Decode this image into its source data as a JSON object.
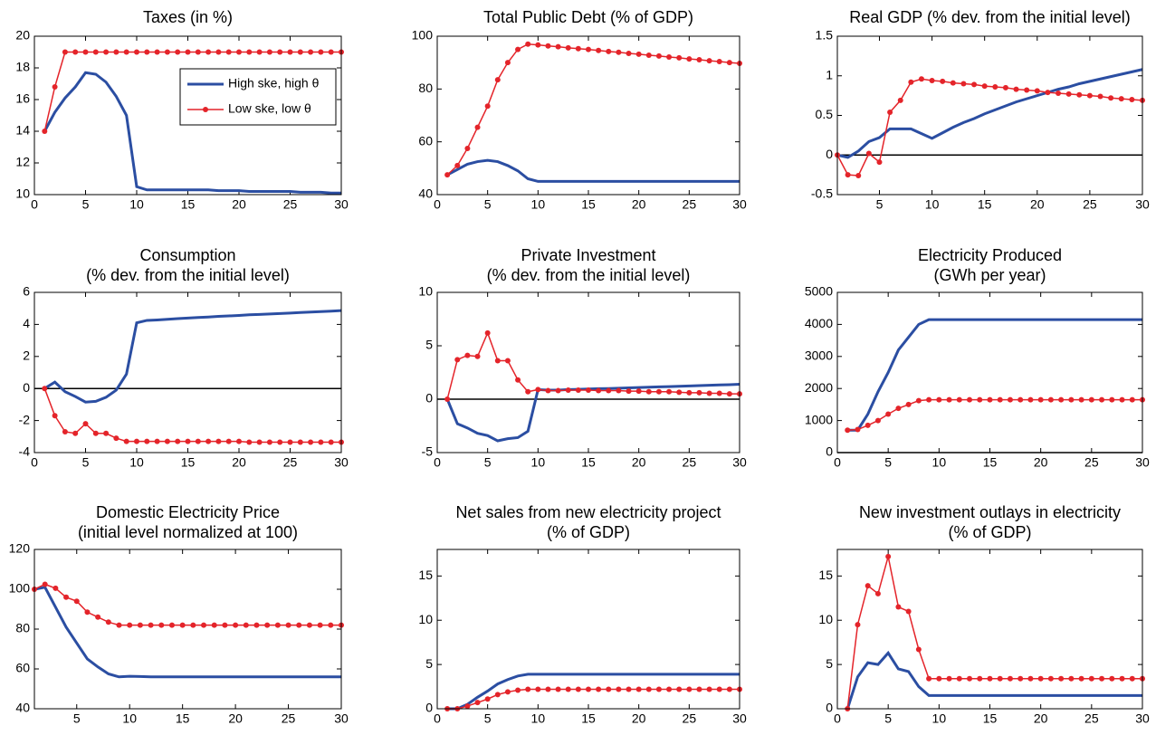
{
  "chart_data": [
    {
      "type": "line",
      "title": "Taxes (in %)",
      "x": [
        1,
        2,
        3,
        4,
        5,
        6,
        7,
        8,
        9,
        10,
        11,
        12,
        13,
        14,
        15,
        16,
        17,
        18,
        19,
        20,
        21,
        22,
        23,
        24,
        25,
        26,
        27,
        28,
        29,
        30
      ],
      "xlim": [
        0,
        30
      ],
      "xticks": [
        0,
        5,
        10,
        15,
        20,
        25,
        30
      ],
      "ylim": [
        10,
        20
      ],
      "yticks": [
        10,
        12,
        14,
        16,
        18,
        20
      ],
      "legend": "center right",
      "series": [
        {
          "name": "High ske, high θ",
          "color": "#2b4ea2",
          "values": [
            14,
            15.2,
            16.1,
            16.8,
            17.7,
            17.6,
            17.1,
            16.2,
            15,
            10.5,
            10.3,
            10.3,
            10.3,
            10.3,
            10.3,
            10.3,
            10.3,
            10.25,
            10.25,
            10.25,
            10.2,
            10.2,
            10.2,
            10.2,
            10.2,
            10.15,
            10.15,
            10.15,
            10.1,
            10.1
          ]
        },
        {
          "name": "Low ske, low θ",
          "color": "#e4242a",
          "values": [
            14,
            16.8,
            19,
            19,
            19,
            19,
            19,
            19,
            19,
            19,
            19,
            19,
            19,
            19,
            19,
            19,
            19,
            19,
            19,
            19,
            19,
            19,
            19,
            19,
            19,
            19,
            19,
            19,
            19,
            19
          ]
        }
      ]
    },
    {
      "type": "line",
      "title": "Total Public Debt (% of GDP)",
      "x": [
        1,
        2,
        3,
        4,
        5,
        6,
        7,
        8,
        9,
        10,
        11,
        12,
        13,
        14,
        15,
        16,
        17,
        18,
        19,
        20,
        21,
        22,
        23,
        24,
        25,
        26,
        27,
        28,
        29,
        30
      ],
      "xlim": [
        0,
        30
      ],
      "xticks": [
        0,
        5,
        10,
        15,
        20,
        25,
        30
      ],
      "ylim": [
        40,
        100
      ],
      "yticks": [
        40,
        60,
        80,
        100
      ],
      "series": [
        {
          "color": "#2b4ea2",
          "values": [
            47.5,
            49.5,
            51.5,
            52.5,
            53,
            52.5,
            51,
            49,
            46,
            45,
            45,
            45,
            45,
            45,
            45,
            45,
            45,
            45,
            45,
            45,
            45,
            45,
            45,
            45,
            45,
            45,
            45,
            45,
            45,
            45
          ]
        },
        {
          "color": "#e4242a",
          "values": [
            47.5,
            51,
            57.5,
            65.5,
            73.5,
            83.5,
            90,
            95,
            97,
            96.7,
            96.3,
            96,
            95.6,
            95.3,
            95,
            94.6,
            94.2,
            93.9,
            93.5,
            93.2,
            92.8,
            92.5,
            92.1,
            91.8,
            91.4,
            91.1,
            90.7,
            90.4,
            90,
            89.7
          ]
        }
      ]
    },
    {
      "type": "line",
      "title": "Real GDP (% dev. from the initial level)",
      "x": [
        1,
        2,
        3,
        4,
        5,
        6,
        7,
        8,
        9,
        10,
        11,
        12,
        13,
        14,
        15,
        16,
        17,
        18,
        19,
        20,
        21,
        22,
        23,
        24,
        25,
        26,
        27,
        28,
        29,
        30
      ],
      "xlim": [
        1,
        30
      ],
      "xticks": [
        5,
        10,
        15,
        20,
        25,
        30
      ],
      "ylim": [
        -0.5,
        1.5
      ],
      "yticks": [
        -0.5,
        0,
        0.5,
        1,
        1.5
      ],
      "hline": 0,
      "series": [
        {
          "color": "#2b4ea2",
          "values": [
            0,
            -0.03,
            0.05,
            0.17,
            0.22,
            0.33,
            0.33,
            0.33,
            0.27,
            0.21,
            0.28,
            0.35,
            0.41,
            0.46,
            0.52,
            0.57,
            0.62,
            0.67,
            0.71,
            0.75,
            0.79,
            0.83,
            0.86,
            0.9,
            0.93,
            0.96,
            0.99,
            1.02,
            1.05,
            1.08
          ]
        },
        {
          "color": "#e4242a",
          "values": [
            0,
            -0.25,
            -0.26,
            0.02,
            -0.09,
            0.54,
            0.69,
            0.92,
            0.96,
            0.94,
            0.93,
            0.91,
            0.9,
            0.89,
            0.87,
            0.86,
            0.85,
            0.83,
            0.82,
            0.81,
            0.79,
            0.78,
            0.77,
            0.76,
            0.75,
            0.74,
            0.72,
            0.71,
            0.7,
            0.69
          ]
        }
      ]
    },
    {
      "type": "line",
      "title": "Consumption",
      "subtitle": "(% dev. from the initial level)",
      "x": [
        1,
        2,
        3,
        4,
        5,
        6,
        7,
        8,
        9,
        10,
        11,
        12,
        13,
        14,
        15,
        16,
        17,
        18,
        19,
        20,
        21,
        22,
        23,
        24,
        25,
        26,
        27,
        28,
        29,
        30
      ],
      "xlim": [
        0,
        30
      ],
      "xticks": [
        0,
        5,
        10,
        15,
        20,
        25,
        30
      ],
      "ylim": [
        -4,
        6
      ],
      "yticks": [
        -4,
        -2,
        0,
        2,
        4,
        6
      ],
      "hline": 0,
      "series": [
        {
          "color": "#2b4ea2",
          "values": [
            0,
            0.4,
            -0.2,
            -0.5,
            -0.85,
            -0.8,
            -0.55,
            -0.1,
            0.9,
            4.1,
            4.25,
            4.28,
            4.32,
            4.36,
            4.4,
            4.43,
            4.46,
            4.5,
            4.53,
            4.56,
            4.6,
            4.62,
            4.65,
            4.68,
            4.71,
            4.74,
            4.77,
            4.8,
            4.83,
            4.86
          ]
        },
        {
          "color": "#e4242a",
          "values": [
            0,
            -1.7,
            -2.7,
            -2.8,
            -2.2,
            -2.8,
            -2.8,
            -3.1,
            -3.3,
            -3.3,
            -3.3,
            -3.3,
            -3.3,
            -3.3,
            -3.3,
            -3.3,
            -3.3,
            -3.3,
            -3.3,
            -3.3,
            -3.35,
            -3.35,
            -3.35,
            -3.35,
            -3.35,
            -3.35,
            -3.35,
            -3.35,
            -3.35,
            -3.35
          ]
        }
      ]
    },
    {
      "type": "line",
      "title": "Private Investment",
      "subtitle": "(% dev. from the initial level)",
      "x": [
        1,
        2,
        3,
        4,
        5,
        6,
        7,
        8,
        9,
        10,
        11,
        12,
        13,
        14,
        15,
        16,
        17,
        18,
        19,
        20,
        21,
        22,
        23,
        24,
        25,
        26,
        27,
        28,
        29,
        30
      ],
      "xlim": [
        0,
        30
      ],
      "xticks": [
        0,
        5,
        10,
        15,
        20,
        25,
        30
      ],
      "ylim": [
        -5,
        10
      ],
      "yticks": [
        -5,
        0,
        5,
        10
      ],
      "hline": 0,
      "series": [
        {
          "color": "#2b4ea2",
          "values": [
            0,
            -2.3,
            -2.7,
            -3.2,
            -3.4,
            -3.9,
            -3.7,
            -3.6,
            -3.0,
            0.9,
            0.85,
            0.85,
            0.9,
            0.92,
            0.95,
            0.98,
            1.0,
            1.03,
            1.06,
            1.09,
            1.12,
            1.15,
            1.18,
            1.21,
            1.24,
            1.27,
            1.3,
            1.33,
            1.36,
            1.4
          ]
        },
        {
          "color": "#e4242a",
          "values": [
            0,
            3.7,
            4.1,
            4.0,
            6.2,
            3.6,
            3.6,
            1.8,
            0.7,
            0.9,
            0.8,
            0.8,
            0.85,
            0.85,
            0.85,
            0.8,
            0.8,
            0.8,
            0.75,
            0.75,
            0.7,
            0.7,
            0.7,
            0.65,
            0.6,
            0.6,
            0.55,
            0.55,
            0.5,
            0.5
          ]
        }
      ]
    },
    {
      "type": "line",
      "title": "Electricity Produced",
      "subtitle": "(GWh per year)",
      "x": [
        1,
        2,
        3,
        4,
        5,
        6,
        7,
        8,
        9,
        10,
        11,
        12,
        13,
        14,
        15,
        16,
        17,
        18,
        19,
        20,
        21,
        22,
        23,
        24,
        25,
        26,
        27,
        28,
        29,
        30
      ],
      "xlim": [
        0,
        30
      ],
      "xticks": [
        0,
        5,
        10,
        15,
        20,
        25,
        30
      ],
      "ylim": [
        0,
        5000
      ],
      "yticks": [
        0,
        1000,
        2000,
        3000,
        4000,
        5000
      ],
      "hline": 0,
      "series": [
        {
          "color": "#2b4ea2",
          "values": [
            700,
            700,
            1200,
            1900,
            2500,
            3200,
            3600,
            4000,
            4150,
            4150,
            4150,
            4150,
            4150,
            4150,
            4150,
            4150,
            4150,
            4150,
            4150,
            4150,
            4150,
            4150,
            4150,
            4150,
            4150,
            4150,
            4150,
            4150,
            4150,
            4150
          ]
        },
        {
          "color": "#e4242a",
          "values": [
            700,
            720,
            850,
            1000,
            1200,
            1380,
            1500,
            1620,
            1650,
            1650,
            1650,
            1650,
            1650,
            1650,
            1650,
            1650,
            1650,
            1650,
            1650,
            1650,
            1650,
            1650,
            1650,
            1650,
            1650,
            1650,
            1650,
            1650,
            1650,
            1650
          ]
        }
      ]
    },
    {
      "type": "line",
      "title": "Domestic Electricity Price",
      "subtitle": "(initial level normalized at 100)",
      "x": [
        1,
        2,
        3,
        4,
        5,
        6,
        7,
        8,
        9,
        10,
        11,
        12,
        13,
        14,
        15,
        16,
        17,
        18,
        19,
        20,
        21,
        22,
        23,
        24,
        25,
        26,
        27,
        28,
        29,
        30
      ],
      "xlim": [
        1,
        30
      ],
      "xticks": [
        5,
        10,
        15,
        20,
        25,
        30
      ],
      "ylim": [
        40,
        120
      ],
      "yticks": [
        40,
        60,
        80,
        100,
        120
      ],
      "series": [
        {
          "color": "#2b4ea2",
          "values": [
            100,
            101,
            91,
            81,
            73,
            65,
            61,
            57.5,
            56,
            56.3,
            56.2,
            56,
            56,
            56,
            56,
            56,
            56,
            56,
            56,
            56,
            56,
            56,
            56,
            56,
            56,
            56,
            56,
            56,
            56,
            56
          ]
        },
        {
          "color": "#e4242a",
          "values": [
            100,
            102.5,
            100.5,
            96,
            94,
            88.5,
            86,
            83.5,
            82,
            82,
            82,
            82,
            82,
            82,
            82,
            82,
            82,
            82,
            82,
            82,
            82,
            82,
            82,
            82,
            82,
            82,
            82,
            82,
            82,
            82
          ]
        }
      ]
    },
    {
      "type": "line",
      "title": "Net sales from new electricity project",
      "subtitle": "(% of GDP)",
      "x": [
        1,
        2,
        3,
        4,
        5,
        6,
        7,
        8,
        9,
        10,
        11,
        12,
        13,
        14,
        15,
        16,
        17,
        18,
        19,
        20,
        21,
        22,
        23,
        24,
        25,
        26,
        27,
        28,
        29,
        30
      ],
      "xlim": [
        0,
        30
      ],
      "xticks": [
        0,
        5,
        10,
        15,
        20,
        25,
        30
      ],
      "ylim": [
        0,
        18
      ],
      "yticks": [
        0,
        5,
        10,
        15
      ],
      "series": [
        {
          "color": "#2b4ea2",
          "values": [
            0,
            0,
            0.5,
            1.3,
            2,
            2.8,
            3.3,
            3.7,
            3.9,
            3.9,
            3.9,
            3.9,
            3.9,
            3.9,
            3.9,
            3.9,
            3.9,
            3.9,
            3.9,
            3.9,
            3.9,
            3.9,
            3.9,
            3.9,
            3.9,
            3.9,
            3.9,
            3.9,
            3.9,
            3.9
          ]
        },
        {
          "color": "#e4242a",
          "values": [
            0,
            0,
            0.3,
            0.7,
            1.1,
            1.6,
            1.9,
            2.1,
            2.2,
            2.2,
            2.2,
            2.2,
            2.2,
            2.2,
            2.2,
            2.2,
            2.2,
            2.2,
            2.2,
            2.2,
            2.2,
            2.2,
            2.2,
            2.2,
            2.2,
            2.2,
            2.2,
            2.2,
            2.2,
            2.2
          ]
        }
      ]
    },
    {
      "type": "line",
      "title": "New investment outlays in electricity",
      "subtitle": "(% of GDP)",
      "x": [
        1,
        2,
        3,
        4,
        5,
        6,
        7,
        8,
        9,
        10,
        11,
        12,
        13,
        14,
        15,
        16,
        17,
        18,
        19,
        20,
        21,
        22,
        23,
        24,
        25,
        26,
        27,
        28,
        29,
        30
      ],
      "xlim": [
        0,
        30
      ],
      "xticks": [
        0,
        5,
        10,
        15,
        20,
        25,
        30
      ],
      "ylim": [
        0,
        18
      ],
      "yticks": [
        0,
        5,
        10,
        15
      ],
      "series": [
        {
          "color": "#2b4ea2",
          "values": [
            0,
            3.6,
            5.2,
            5,
            6.3,
            4.5,
            4.2,
            2.5,
            1.5,
            1.5,
            1.5,
            1.5,
            1.5,
            1.5,
            1.5,
            1.5,
            1.5,
            1.5,
            1.5,
            1.5,
            1.5,
            1.5,
            1.5,
            1.5,
            1.5,
            1.5,
            1.5,
            1.5,
            1.5,
            1.5
          ]
        },
        {
          "color": "#e4242a",
          "values": [
            0,
            9.5,
            13.9,
            13,
            17.2,
            11.5,
            11,
            6.7,
            3.4,
            3.4,
            3.4,
            3.4,
            3.4,
            3.4,
            3.4,
            3.4,
            3.4,
            3.4,
            3.4,
            3.4,
            3.4,
            3.4,
            3.4,
            3.4,
            3.4,
            3.4,
            3.4,
            3.4,
            3.4,
            3.4
          ]
        }
      ]
    }
  ]
}
